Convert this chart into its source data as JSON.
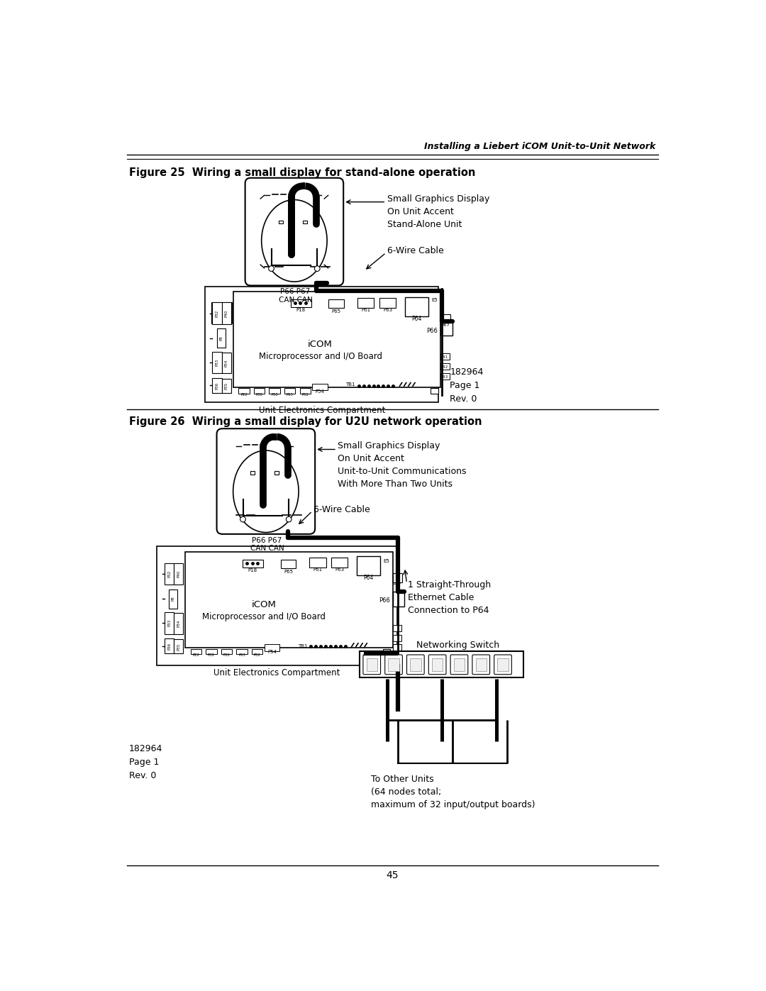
{
  "page_header_right": "Installing a Liebert iCOM Unit-to-Unit Network",
  "page_number": "45",
  "fig25_title": "Figure 25  Wiring a small display for stand-alone operation",
  "fig26_title": "Figure 26  Wiring a small display for U2U network operation",
  "fig25_label1": "Small Graphics Display\nOn Unit Accent\nStand-Alone Unit",
  "fig25_label2": "6-Wire Cable",
  "fig25_label3_a": "iCOM",
  "fig25_label3_b": "Microprocessor and I/O Board",
  "fig25_label4": "Unit Electronics Compartment",
  "fig25_label5": "182964\nPage 1\nRev. 0",
  "fig25_p66p67": "P66 P67\nCAN CAN",
  "fig26_label1": "Small Graphics Display\nOn Unit Accent\nUnit-to-Unit Communications\nWith More Than Two Units",
  "fig26_label2": "6-Wire Cable",
  "fig26_label3_a": "iCOM",
  "fig26_label3_b": "Microprocessor and I/O Board",
  "fig26_label4": "Unit Electronics Compartment",
  "fig26_label5": "182964\nPage 1\nRev. 0",
  "fig26_p66p67": "P66 P67\nCAN CAN",
  "fig26_label8": "1 Straight-Through\nEthernet Cable\nConnection to P64",
  "fig26_label9": "Networking Switch",
  "fig26_label10": "To Other Units\n(64 nodes total;\nmaximum of 32 input/output boards)",
  "bg_color": "#ffffff",
  "text_color": "#000000",
  "line_color": "#000000"
}
